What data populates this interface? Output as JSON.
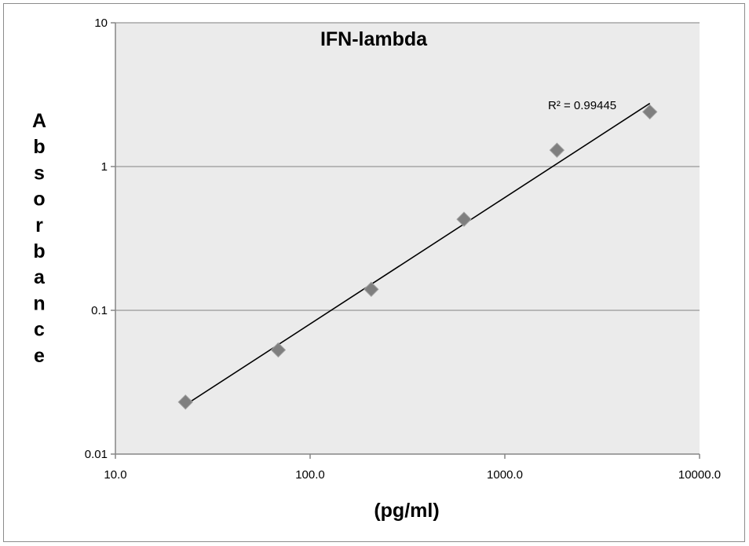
{
  "chart_data": {
    "type": "scatter",
    "title": "IFN-lambda",
    "xlabel": "(pg/ml)",
    "ylabel": "Absorbance",
    "x_scale": "log",
    "y_scale": "log",
    "xlim": [
      10,
      10000
    ],
    "ylim": [
      0.01,
      10
    ],
    "x_ticks": [
      10,
      100,
      1000,
      10000
    ],
    "x_tick_labels": [
      "10.0",
      "100.0",
      "1000.0",
      "10000.0"
    ],
    "y_ticks": [
      0.01,
      0.1,
      1,
      10
    ],
    "y_tick_labels": [
      "0.01",
      "0.1",
      "1",
      "10"
    ],
    "grid": "horizontal",
    "legend": "none",
    "series": [
      {
        "x": [
          22.9,
          68.6,
          206,
          617,
          1852,
          5556
        ],
        "y": [
          0.023,
          0.053,
          0.14,
          0.43,
          1.3,
          2.4
        ],
        "marker": "diamond",
        "color": "#7f7f7f"
      }
    ],
    "trendline": {
      "type": "power",
      "x_range": [
        22.9,
        5556
      ],
      "y_range": [
        0.022,
        2.75
      ],
      "r_squared_label": "R² = 0.99445",
      "color": "#000000"
    },
    "plot_background": "#ebebeb",
    "grid_color": "#a6a6a6"
  }
}
